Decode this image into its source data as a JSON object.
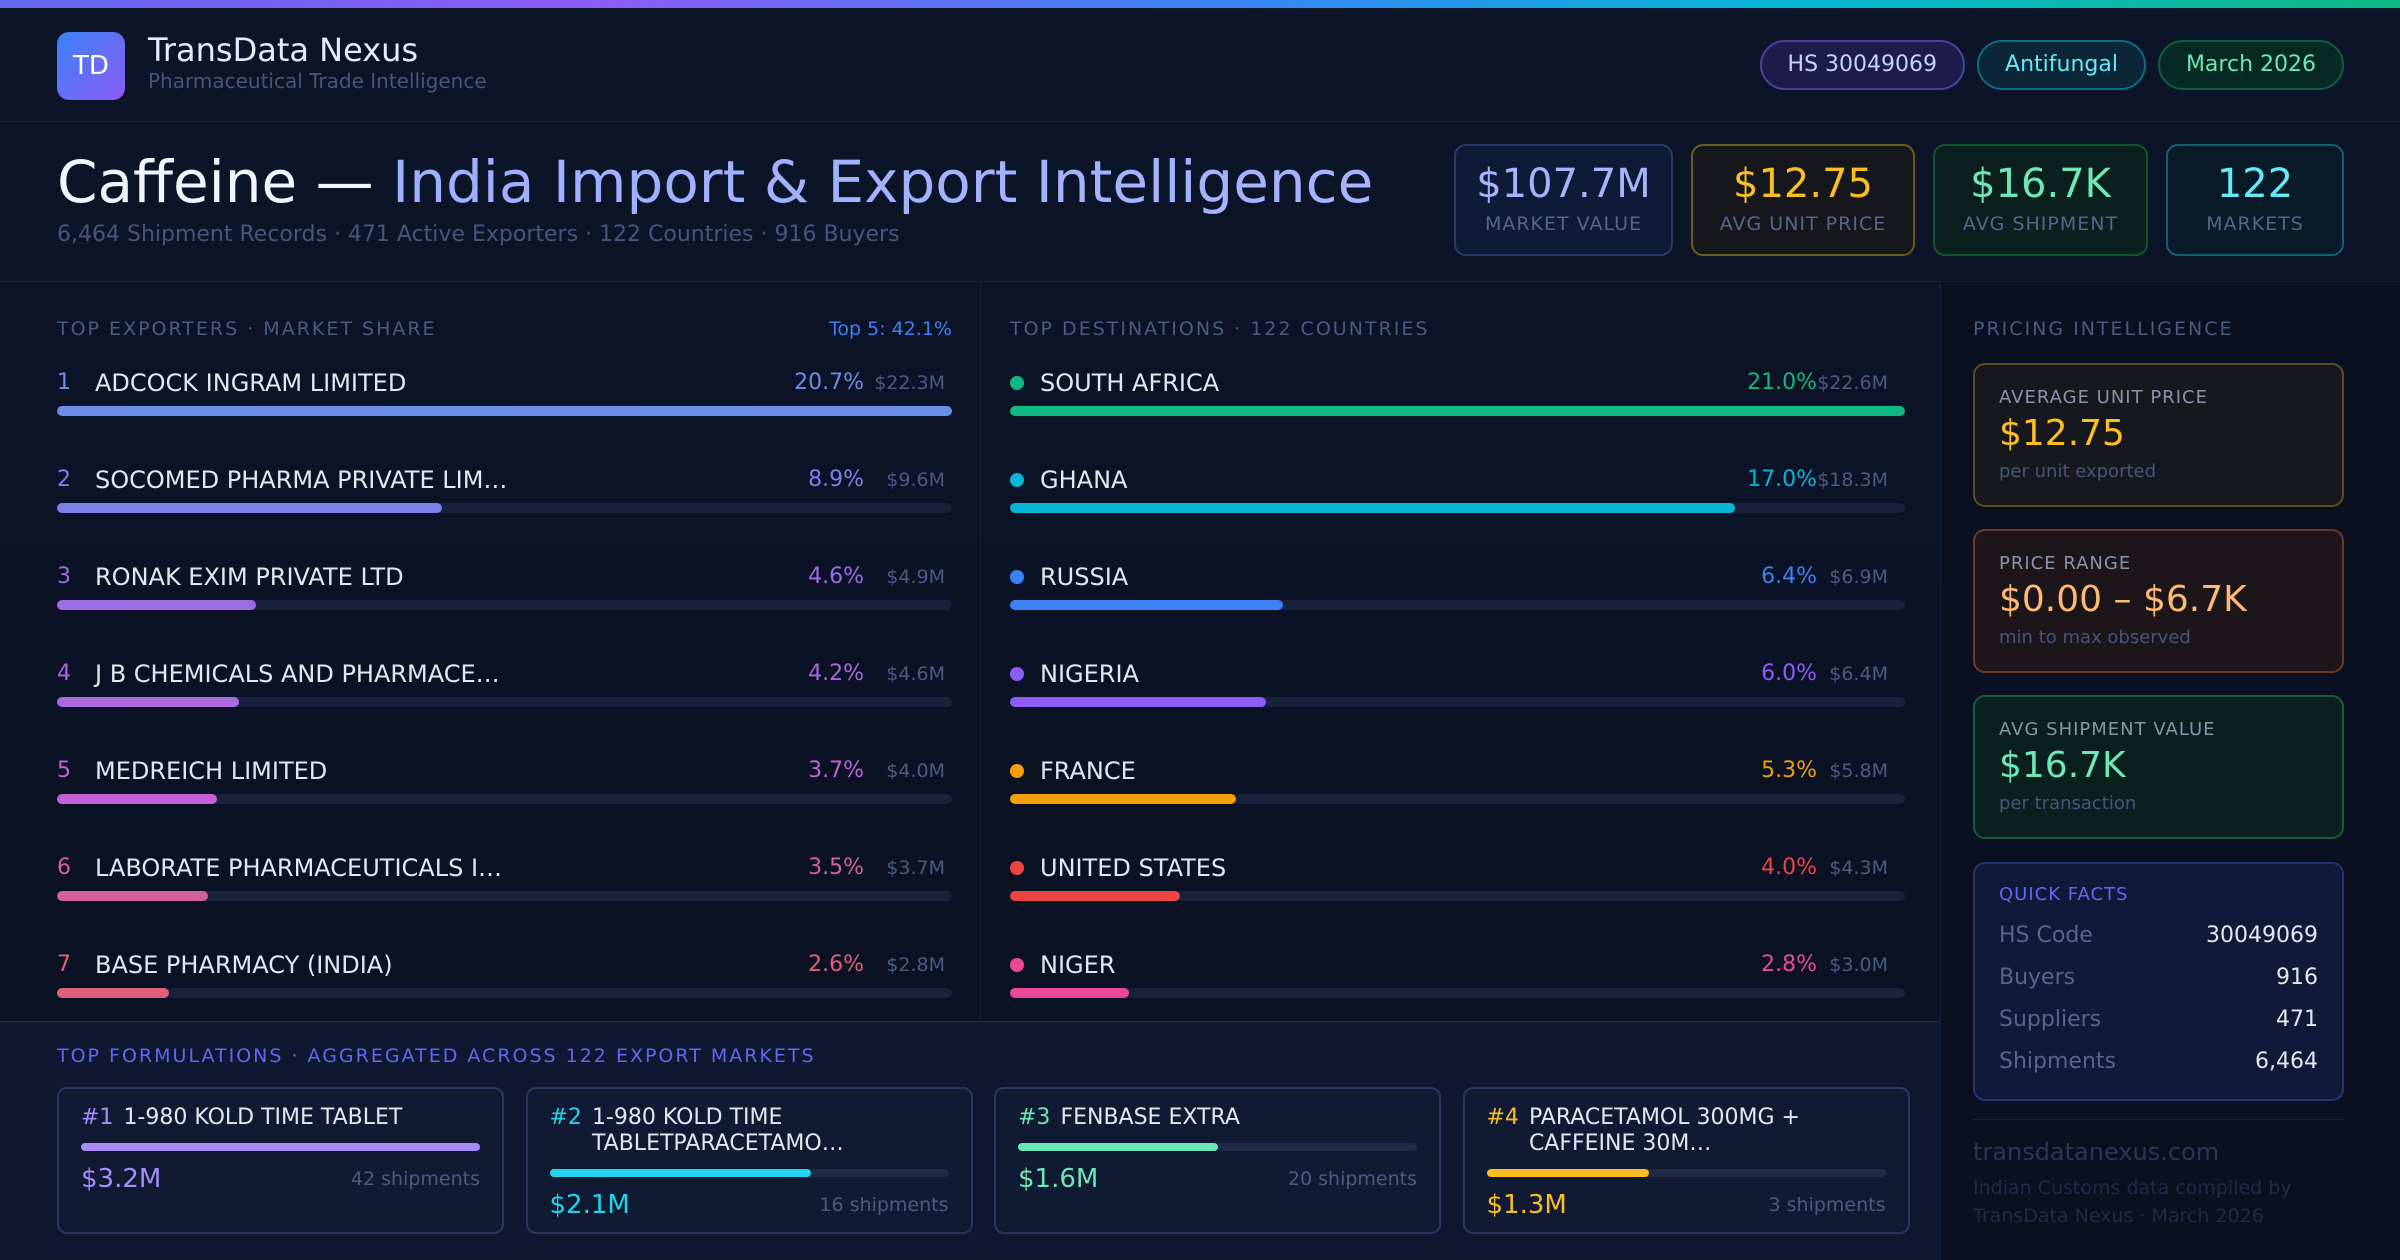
{
  "header": {
    "logo": "TD",
    "brand": "TransData Nexus",
    "tagline": "Pharmaceutical Trade Intelligence",
    "tags": [
      "HS 30049069",
      "Antifungal",
      "March 2026"
    ]
  },
  "hero": {
    "title_lead": "Caffeine —",
    "title_accent": "India Import & Export Intelligence",
    "subtitle": "6,464 Shipment Records · 471 Active Exporters · 122 Countries · 916 Buyers",
    "kpis": [
      {
        "value": "$107.7M",
        "label": "MARKET VALUE"
      },
      {
        "value": "$12.75",
        "label": "AVG UNIT PRICE"
      },
      {
        "value": "$16.7K",
        "label": "AVG SHIPMENT"
      },
      {
        "value": "122",
        "label": "MARKETS"
      }
    ]
  },
  "exporters": {
    "title": "TOP EXPORTERS · MARKET SHARE",
    "badge": "Top 5: 42.1%",
    "items": [
      {
        "rank": "1",
        "name": "ADCOCK INGRAM LIMITED",
        "share": 20.7,
        "share_label": "20.7%",
        "value": "$22.3M",
        "color": "#6b8ee6"
      },
      {
        "rank": "2",
        "name": "SOCOMED PHARMA PRIVATE LIM…",
        "share": 8.9,
        "share_label": "8.9%",
        "value": "$9.6M",
        "color": "#7f7fe8"
      },
      {
        "rank": "3",
        "name": "RONAK EXIM PRIVATE LTD",
        "share": 4.6,
        "share_label": "4.6%",
        "value": "$4.9M",
        "color": "#9a6ee2"
      },
      {
        "rank": "4",
        "name": "J B CHEMICALS AND PHARMACE…",
        "share": 4.2,
        "share_label": "4.2%",
        "value": "$4.6M",
        "color": "#a86add"
      },
      {
        "rank": "5",
        "name": "MEDREICH LIMITED",
        "share": 3.7,
        "share_label": "3.7%",
        "value": "$4.0M",
        "color": "#c262d6"
      },
      {
        "rank": "6",
        "name": "LABORATE PHARMACEUTICALS I…",
        "share": 3.5,
        "share_label": "3.5%",
        "value": "$3.7M",
        "color": "#d2619c"
      },
      {
        "rank": "7",
        "name": "BASE PHARMACY (INDIA)",
        "share": 2.6,
        "share_label": "2.6%",
        "value": "$2.8M",
        "color": "#e0607a"
      }
    ]
  },
  "destinations": {
    "title": "TOP DESTINATIONS · 122 COUNTRIES",
    "items": [
      {
        "name": "SOUTH AFRICA",
        "share": 21.0,
        "share_label": "21.0%",
        "value": "$22.6M",
        "color": "#10b981"
      },
      {
        "name": "GHANA",
        "share": 17.0,
        "share_label": "17.0%",
        "value": "$18.3M",
        "color": "#06b6d4"
      },
      {
        "name": "RUSSIA",
        "share": 6.4,
        "share_label": "6.4%",
        "value": "$6.9M",
        "color": "#3b82f6"
      },
      {
        "name": "NIGERIA",
        "share": 6.0,
        "share_label": "6.0%",
        "value": "$6.4M",
        "color": "#8b5cf6"
      },
      {
        "name": "FRANCE",
        "share": 5.3,
        "share_label": "5.3%",
        "value": "$5.8M",
        "color": "#f59e0b"
      },
      {
        "name": "UNITED STATES",
        "share": 4.0,
        "share_label": "4.0%",
        "value": "$4.3M",
        "color": "#ef4444"
      },
      {
        "name": "NIGER",
        "share": 2.8,
        "share_label": "2.8%",
        "value": "$3.0M",
        "color": "#ec4899"
      }
    ]
  },
  "formulations": {
    "title": "TOP FORMULATIONS · AGGREGATED ACROSS 122 EXPORT MARKETS",
    "items": [
      {
        "rank": "#1",
        "name": "1-980 KOLD TIME TABLET",
        "value": 3.2,
        "value_label": "$3.2M",
        "shipments": "42 shipments",
        "color": "#a78bfa"
      },
      {
        "rank": "#2",
        "name": "1-980 KOLD TIME TABLETPARACETAMO…",
        "value": 2.1,
        "value_label": "$2.1M",
        "shipments": "16 shipments",
        "color": "#22d3ee"
      },
      {
        "rank": "#3",
        "name": "FENBASE EXTRA",
        "value": 1.6,
        "value_label": "$1.6M",
        "shipments": "20 shipments",
        "color": "#6ee7b7"
      },
      {
        "rank": "#4",
        "name": "PARACETAMOL 300MG + CAFFEINE 30M…",
        "value": 1.3,
        "value_label": "$1.3M",
        "shipments": "3 shipments",
        "color": "#fbbf24"
      }
    ]
  },
  "pricing": {
    "title": "PRICING INTELLIGENCE",
    "cards": [
      {
        "label": "AVERAGE UNIT PRICE",
        "value": "$12.75",
        "note": "per unit exported"
      },
      {
        "label": "PRICE RANGE",
        "value": "$0.00 – $6.7K",
        "note": "min to max observed"
      },
      {
        "label": "AVG SHIPMENT VALUE",
        "value": "$16.7K",
        "note": "per transaction"
      }
    ],
    "quick_facts": {
      "title": "QUICK FACTS",
      "rows": [
        [
          "HS Code",
          "30049069"
        ],
        [
          "Buyers",
          "916"
        ],
        [
          "Suppliers",
          "471"
        ],
        [
          "Shipments",
          "6,464"
        ]
      ]
    }
  },
  "footer": {
    "site": "transdatanexus.com",
    "note": "Indian Customs data compiled by TransData Nexus · March 2026"
  }
}
